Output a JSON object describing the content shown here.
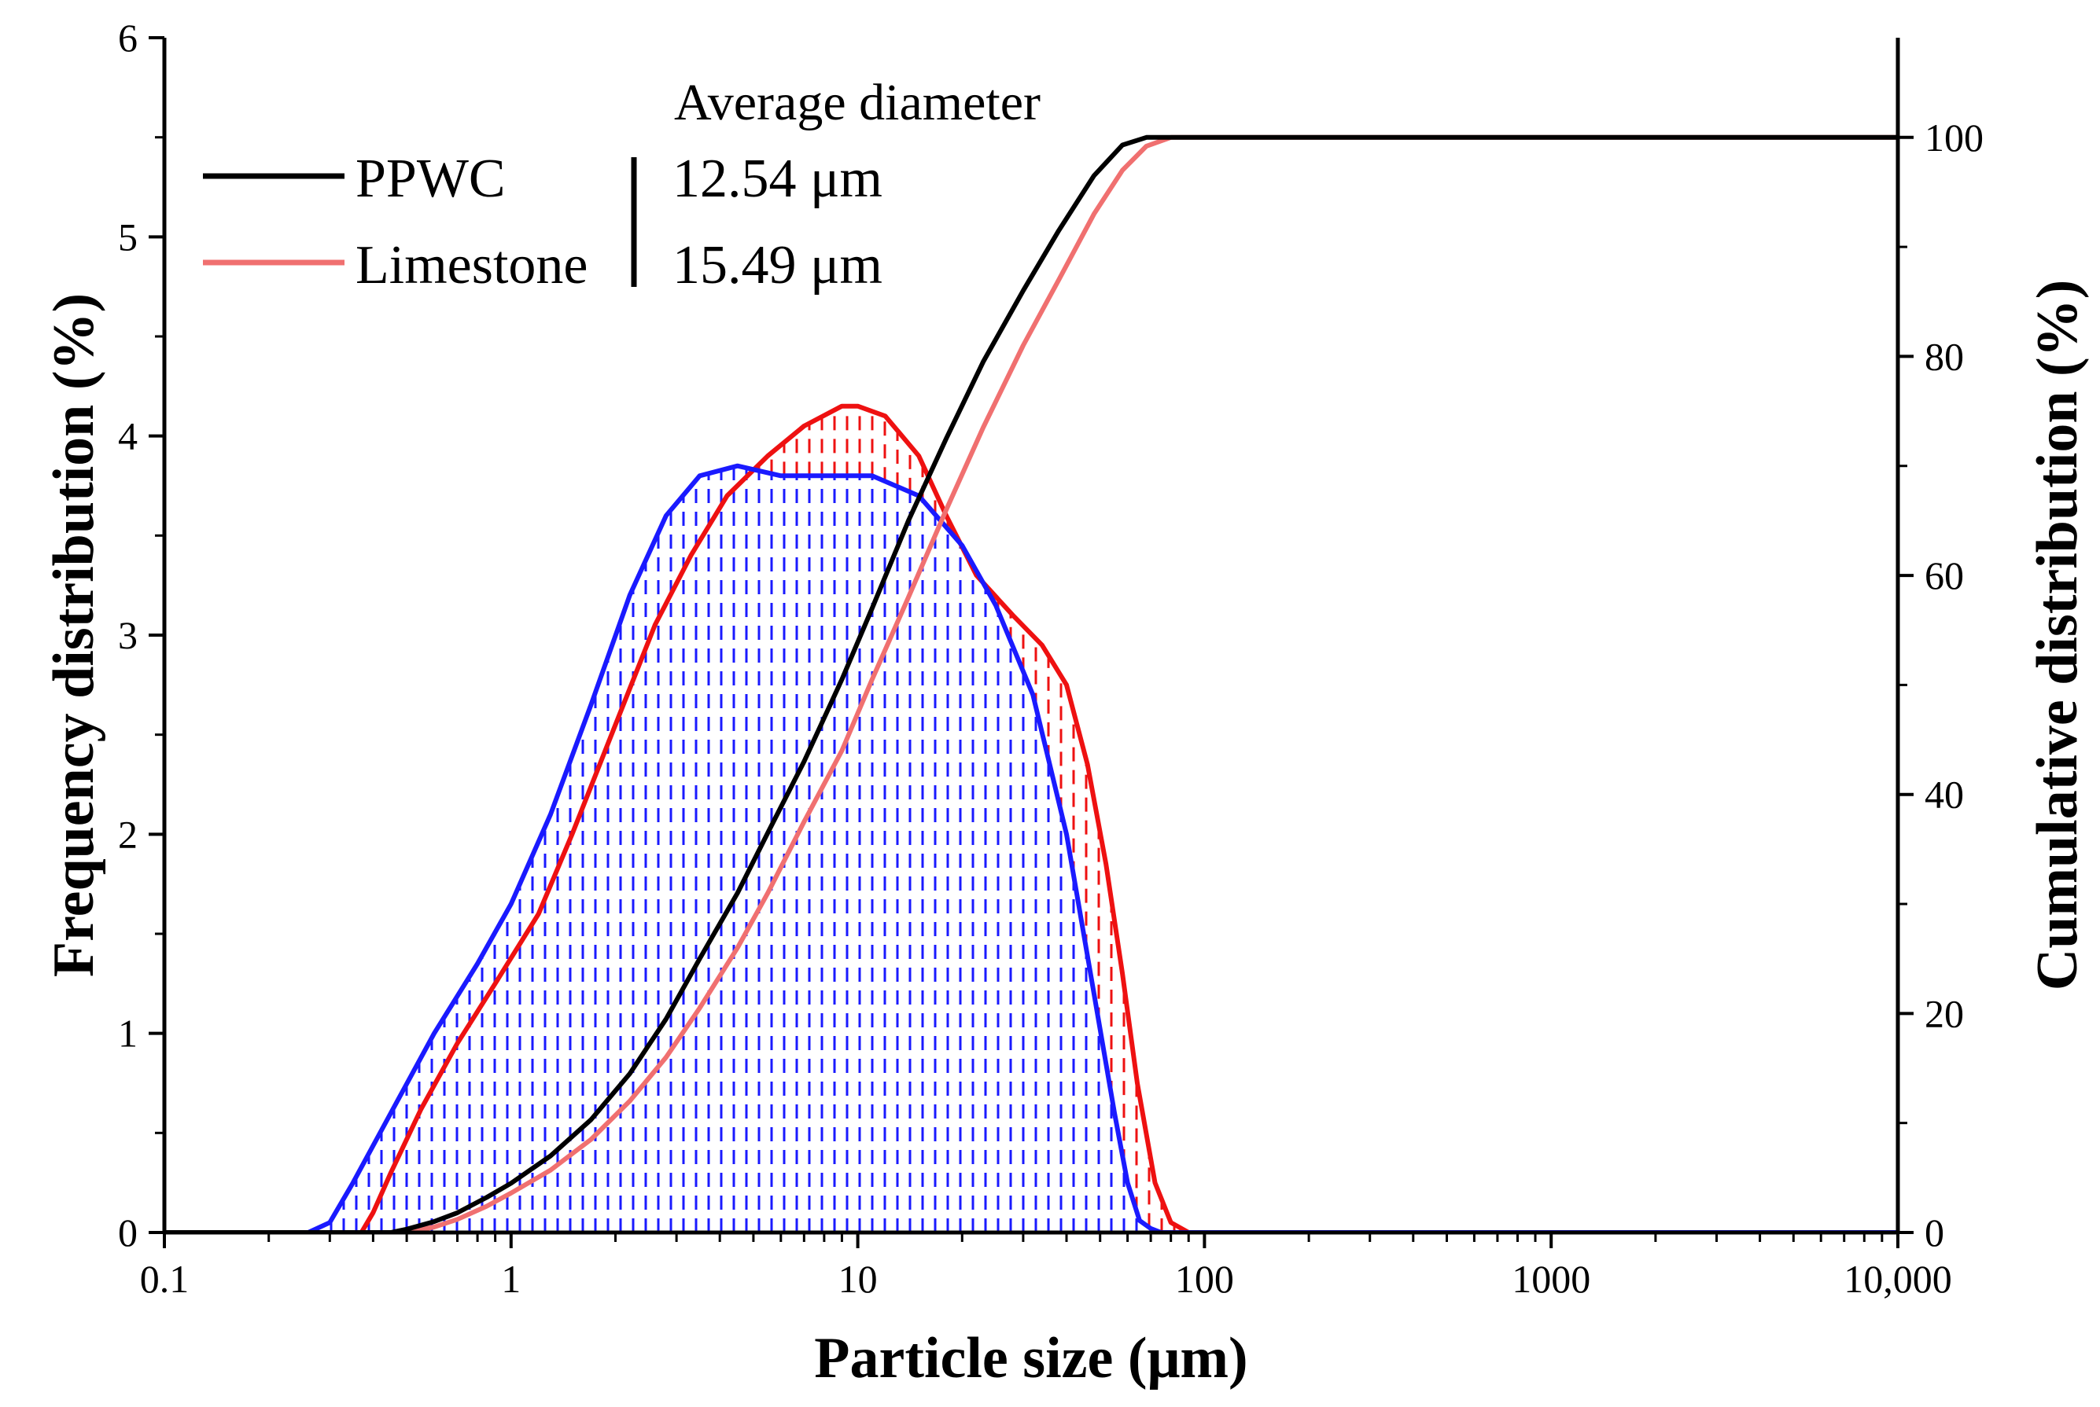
{
  "chart_data": {
    "type": "area",
    "xlabel": "Particle size (μm)",
    "ylabel_left": "Frequency distribution (%)",
    "ylabel_right": "Cumulative distribution (%)",
    "x_scale": "log",
    "xlim": [
      0.1,
      10000
    ],
    "ylim_left": [
      0,
      6
    ],
    "ylim_right": [
      0,
      109.1
    ],
    "x_ticks": [
      {
        "value": 0.1,
        "label": "0.1"
      },
      {
        "value": 1,
        "label": "1"
      },
      {
        "value": 10,
        "label": "10"
      },
      {
        "value": 100,
        "label": "100"
      },
      {
        "value": 1000,
        "label": "1000"
      },
      {
        "value": 10000,
        "label": "10,000"
      }
    ],
    "y_left_ticks": [
      {
        "value": 0,
        "label": "0"
      },
      {
        "value": 1,
        "label": "1"
      },
      {
        "value": 2,
        "label": "2"
      },
      {
        "value": 3,
        "label": "3"
      },
      {
        "value": 4,
        "label": "4"
      },
      {
        "value": 5,
        "label": "5"
      },
      {
        "value": 6,
        "label": "6"
      }
    ],
    "y_right_ticks": [
      {
        "value": 0,
        "label": "0"
      },
      {
        "value": 20,
        "label": "20"
      },
      {
        "value": 40,
        "label": "40"
      },
      {
        "value": 60,
        "label": "60"
      },
      {
        "value": 80,
        "label": "80"
      },
      {
        "value": 100,
        "label": "100"
      }
    ],
    "legend": {
      "title": "Average diameter",
      "entries": [
        {
          "name": "PPWC",
          "value": "12.54 μm",
          "color": "#000000"
        },
        {
          "name": "Limestone",
          "value": "15.49 μm",
          "color": "#f07070"
        }
      ]
    },
    "series": [
      {
        "name": "PPWC frequency",
        "axis": "left",
        "color": "#1a1aff",
        "hatched": true,
        "x": [
          0.26,
          0.3,
          0.35,
          0.45,
          0.6,
          0.8,
          1.0,
          1.3,
          1.7,
          2.2,
          2.8,
          3.5,
          4.5,
          6.0,
          8.0,
          11.0,
          15.0,
          20.0,
          25.0,
          32.0,
          40.0,
          48.0,
          55.0,
          60.0,
          65.0,
          70.0,
          75.0,
          100.0,
          1000.0,
          10000.0
        ],
        "y": [
          0.0,
          0.05,
          0.25,
          0.6,
          1.0,
          1.35,
          1.65,
          2.1,
          2.65,
          3.2,
          3.6,
          3.8,
          3.85,
          3.8,
          3.8,
          3.8,
          3.7,
          3.45,
          3.15,
          2.7,
          2.0,
          1.2,
          0.6,
          0.25,
          0.06,
          0.02,
          0.0,
          0.0,
          0.0,
          0.0
        ]
      },
      {
        "name": "Limestone frequency",
        "axis": "left",
        "color": "#ee1111",
        "hatched": true,
        "x": [
          0.37,
          0.4,
          0.45,
          0.55,
          0.7,
          0.9,
          1.2,
          1.5,
          2.0,
          2.6,
          3.3,
          4.2,
          5.5,
          7.0,
          9.0,
          10.0,
          12.0,
          15.0,
          18.0,
          22.0,
          28.0,
          34.0,
          40.0,
          46.0,
          52.0,
          58.0,
          64.0,
          72.0,
          80.0,
          90.0,
          100.0,
          1000.0,
          10000.0
        ],
        "y": [
          0.0,
          0.1,
          0.3,
          0.62,
          0.95,
          1.25,
          1.6,
          2.0,
          2.55,
          3.05,
          3.4,
          3.7,
          3.9,
          4.05,
          4.15,
          4.15,
          4.1,
          3.9,
          3.6,
          3.3,
          3.1,
          2.95,
          2.75,
          2.35,
          1.85,
          1.3,
          0.75,
          0.25,
          0.05,
          0.0,
          0.0,
          0.0,
          0.0
        ]
      },
      {
        "name": "PPWC cumulative",
        "axis": "right",
        "color": "#000000",
        "hatched": false,
        "x": [
          0.1,
          0.45,
          0.5,
          0.6,
          0.7,
          0.85,
          1.0,
          1.3,
          1.7,
          2.2,
          2.8,
          3.5,
          4.5,
          5.5,
          7.0,
          9.0,
          11.0,
          14.0,
          18.0,
          23.0,
          30.0,
          38.0,
          48.0,
          58.0,
          68.0,
          75.0,
          100.0,
          1000.0,
          10000.0
        ],
        "y": [
          0.0,
          0.0,
          0.3,
          1.0,
          1.8,
          3.2,
          4.5,
          7.0,
          10.3,
          14.5,
          19.5,
          25.0,
          31.0,
          36.5,
          43.0,
          50.5,
          57.0,
          65.0,
          72.5,
          79.5,
          86.0,
          91.5,
          96.5,
          99.3,
          100.0,
          100.0,
          100.0,
          100.0,
          100.0
        ]
      },
      {
        "name": "Limestone cumulative",
        "axis": "right",
        "color": "#f07070",
        "hatched": false,
        "x": [
          0.1,
          0.5,
          0.6,
          0.7,
          0.85,
          1.0,
          1.3,
          1.7,
          2.2,
          2.8,
          3.5,
          4.5,
          5.5,
          7.0,
          9.0,
          11.0,
          14.0,
          18.0,
          23.0,
          30.0,
          38.0,
          48.0,
          58.0,
          68.0,
          80.0,
          90.0,
          100.0,
          1000.0,
          10000.0
        ],
        "y": [
          0.0,
          0.0,
          0.5,
          1.2,
          2.4,
          3.6,
          5.7,
          8.5,
          12.0,
          16.0,
          20.5,
          26.0,
          31.0,
          37.5,
          44.0,
          50.5,
          58.0,
          66.0,
          73.5,
          81.0,
          87.0,
          93.0,
          97.0,
          99.2,
          100.0,
          100.0,
          100.0,
          100.0,
          100.0
        ]
      }
    ]
  }
}
